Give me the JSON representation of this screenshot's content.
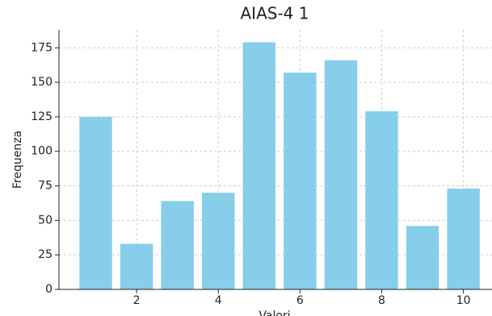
{
  "chart_data": {
    "type": "bar",
    "title": "AIAS-4 1",
    "x_label": "Valori",
    "y_label": "Frequenza",
    "x": [
      1,
      2,
      3,
      4,
      5,
      6,
      7,
      8,
      9,
      10
    ],
    "values": [
      125,
      33,
      64,
      70,
      179,
      157,
      166,
      129,
      46,
      73
    ],
    "color": "#87ceeb",
    "xlim": [
      0.1,
      10.7
    ],
    "xticks": [
      2,
      4,
      6,
      8,
      10
    ],
    "ylim": [
      0,
      188
    ],
    "yticks": [
      0,
      25,
      50,
      75,
      100,
      125,
      150,
      175
    ],
    "grid": true
  }
}
